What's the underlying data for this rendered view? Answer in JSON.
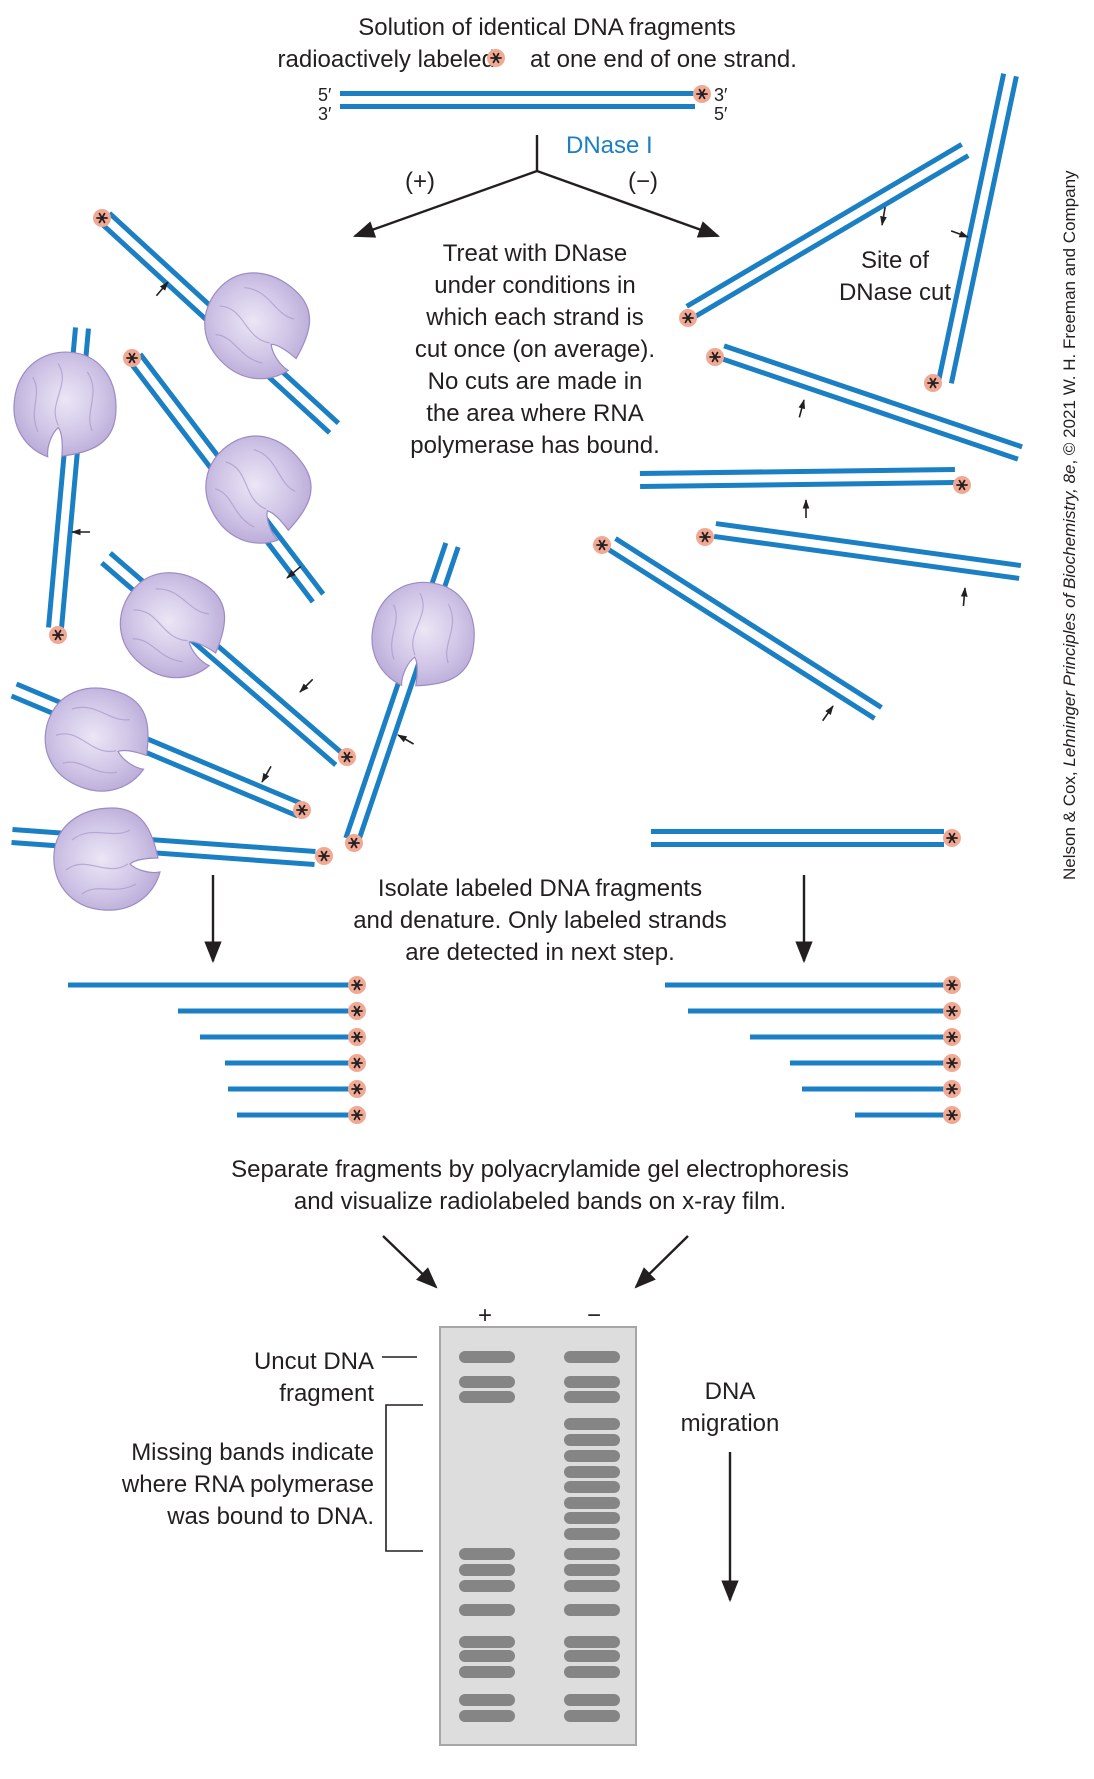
{
  "texts": {
    "title_line1": "Solution of identical DNA fragments",
    "title_line2_a": "radioactively labeled",
    "title_line2_b": "at one end of one strand.",
    "end_5_top": "5′",
    "end_3_bottom": "3′",
    "end_3_top": "3′",
    "end_5_bottom": "5′",
    "dnase": "DNase I",
    "plus_branch": "(+)",
    "minus_branch": "(−)",
    "treat_lines": [
      "Treat with DNase",
      "under conditions in",
      "which each strand is",
      "cut once (on average).",
      "No cuts are made in",
      "the area where RNA",
      "polymerase has bound."
    ],
    "site_lines": [
      "Site of",
      "DNase cut"
    ],
    "isolate_lines": [
      "Isolate labeled DNA fragments",
      "and denature. Only labeled strands",
      "are detected in next step."
    ],
    "separate_lines": [
      "Separate fragments by polyacrylamide gel electrophoresis",
      "and visualize radiolabeled bands on x-ray film."
    ],
    "gel_plus": "+",
    "gel_minus": "−",
    "uncut_lines": [
      "Uncut DNA",
      "fragment"
    ],
    "missing_lines": [
      "Missing bands indicate",
      "where RNA polymerase",
      "was bound to DNA."
    ],
    "migration_lines": [
      "DNA",
      "migration"
    ]
  },
  "credit": {
    "plain1": "Nelson & Cox, ",
    "italic": "Lehninger Principles of Biochemistry, 8e",
    "plain2": ", © 2021 W. H. Freeman and Company"
  },
  "colors": {
    "dna_blue": "#1b7fc4",
    "label_pink": "#f2a994",
    "polymerase_purple": "#c9bde0",
    "gel_gray": "#dddddd",
    "band_gray": "#858585"
  },
  "icons": [
    "radiolabel-star-icon",
    "rna-polymerase-blob",
    "dnase-cut-arrow",
    "flow-arrow"
  ]
}
